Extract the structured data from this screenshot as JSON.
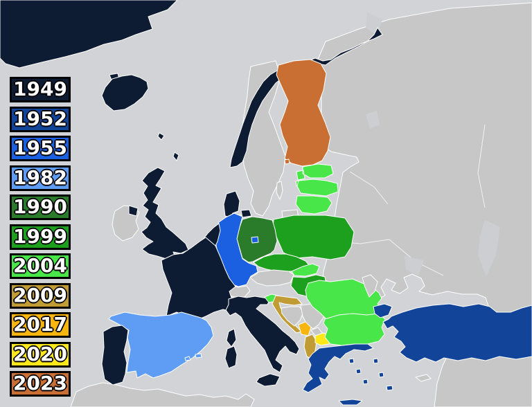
{
  "legend": {
    "years": [
      "1949",
      "1952",
      "1955",
      "1982",
      "1990",
      "1999",
      "2004",
      "2009",
      "2017",
      "2020",
      "2023"
    ]
  },
  "map": {
    "sea_color": "#d2d3d6",
    "lake_color": "#cdced2",
    "non_member_color": "#c7c7c7",
    "border_color": "#ffffff",
    "year_colors": {
      "1949": "#0d1b33",
      "1952": "#12459a",
      "1955": "#1b60e0",
      "1982": "#5f9df4",
      "1990": "#2a7b2a",
      "1999": "#1da01d",
      "2004": "#49e649",
      "2009": "#c19b33",
      "2017": "#f7b50d",
      "2020": "#fee819",
      "2023": "#c96f33",
      "none": "#c7c7c7"
    },
    "countries": [
      {
        "name": "Greenland",
        "year": "1949"
      },
      {
        "name": "Iceland",
        "year": "1949"
      },
      {
        "name": "Norway",
        "year": "1949"
      },
      {
        "name": "Denmark",
        "year": "1949"
      },
      {
        "name": "United Kingdom",
        "year": "1949"
      },
      {
        "name": "France",
        "year": "1949"
      },
      {
        "name": "Netherlands",
        "year": "1949"
      },
      {
        "name": "Belgium",
        "year": "1949"
      },
      {
        "name": "Luxembourg",
        "year": "1949"
      },
      {
        "name": "Italy",
        "year": "1949"
      },
      {
        "name": "Portugal",
        "year": "1949"
      },
      {
        "name": "Greece",
        "year": "1952"
      },
      {
        "name": "Turkey",
        "year": "1952"
      },
      {
        "name": "West Germany",
        "year": "1955"
      },
      {
        "name": "West Berlin",
        "year": "1955"
      },
      {
        "name": "Spain",
        "year": "1982"
      },
      {
        "name": "East Germany",
        "year": "1990"
      },
      {
        "name": "Poland",
        "year": "1999"
      },
      {
        "name": "Czech Republic",
        "year": "1999"
      },
      {
        "name": "Hungary",
        "year": "1999"
      },
      {
        "name": "Estonia",
        "year": "2004"
      },
      {
        "name": "Latvia",
        "year": "2004"
      },
      {
        "name": "Lithuania",
        "year": "2004"
      },
      {
        "name": "Slovakia",
        "year": "2004"
      },
      {
        "name": "Slovenia",
        "year": "2004"
      },
      {
        "name": "Romania",
        "year": "2004"
      },
      {
        "name": "Bulgaria",
        "year": "2004"
      },
      {
        "name": "Croatia",
        "year": "2009"
      },
      {
        "name": "Albania",
        "year": "2009"
      },
      {
        "name": "Montenegro",
        "year": "2017"
      },
      {
        "name": "North Macedonia",
        "year": "2020"
      },
      {
        "name": "Finland",
        "year": "2023"
      },
      {
        "name": "Ireland",
        "year": "none"
      },
      {
        "name": "Sweden",
        "year": "none"
      },
      {
        "name": "Switzerland",
        "year": "none"
      },
      {
        "name": "Austria",
        "year": "none"
      },
      {
        "name": "Serbia",
        "year": "none"
      },
      {
        "name": "Bosnia and Herzegovina",
        "year": "none"
      },
      {
        "name": "Kosovo",
        "year": "none"
      },
      {
        "name": "Russia",
        "year": "none"
      },
      {
        "name": "Belarus",
        "year": "none"
      },
      {
        "name": "Ukraine",
        "year": "none"
      },
      {
        "name": "Moldova",
        "year": "none"
      },
      {
        "name": "Cyprus",
        "year": "none"
      }
    ]
  }
}
